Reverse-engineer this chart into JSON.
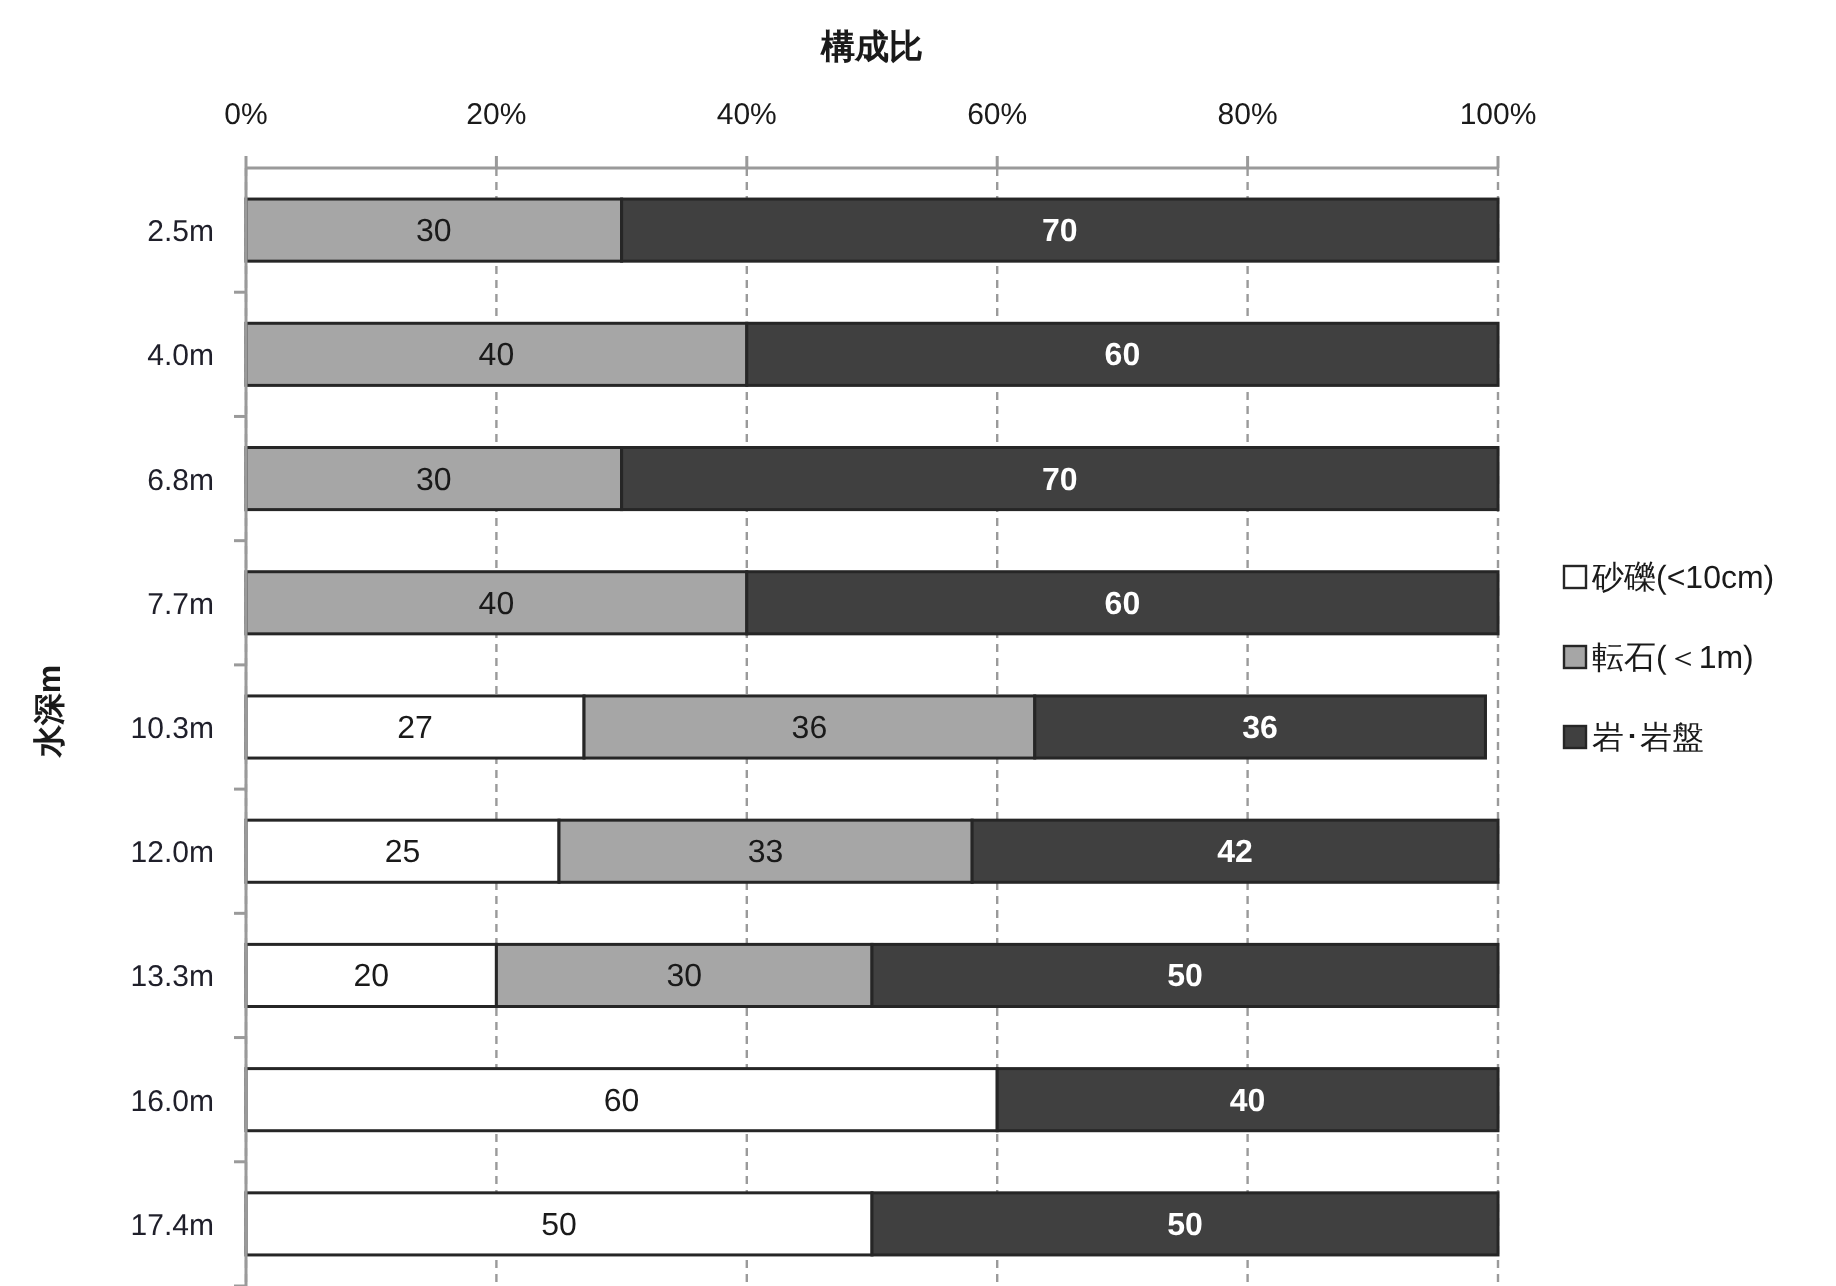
{
  "chart_data": {
    "type": "bar",
    "orientation": "horizontal",
    "stacked": true,
    "xlabel": "構成比",
    "ylabel": "水深m",
    "categories": [
      "2.5m",
      "4.0m",
      "6.8m",
      "7.7m",
      "10.3m",
      "12.0m",
      "13.3m",
      "16.0m",
      "17.4m"
    ],
    "series": [
      {
        "name": "砂礫(<10cm)",
        "color": "#ffffff",
        "values": [
          null,
          null,
          null,
          null,
          27,
          25,
          20,
          60,
          50
        ]
      },
      {
        "name": "転石(＜1m)",
        "color": "#a6a6a6",
        "values": [
          30,
          40,
          30,
          40,
          36,
          33,
          30,
          null,
          null
        ]
      },
      {
        "name": "岩･岩盤",
        "color": "#404040",
        "values": [
          70,
          60,
          70,
          60,
          36,
          42,
          50,
          40,
          50
        ]
      }
    ],
    "xlim": [
      0,
      100
    ],
    "xticks": [
      {
        "value": 0,
        "label": "0%"
      },
      {
        "value": 20,
        "label": "20%"
      },
      {
        "value": 40,
        "label": "40%"
      },
      {
        "value": 60,
        "label": "60%"
      },
      {
        "value": 80,
        "label": "80%"
      },
      {
        "value": 100,
        "label": "100%"
      }
    ],
    "grid": "x",
    "legend": "right",
    "data_labels": true
  }
}
